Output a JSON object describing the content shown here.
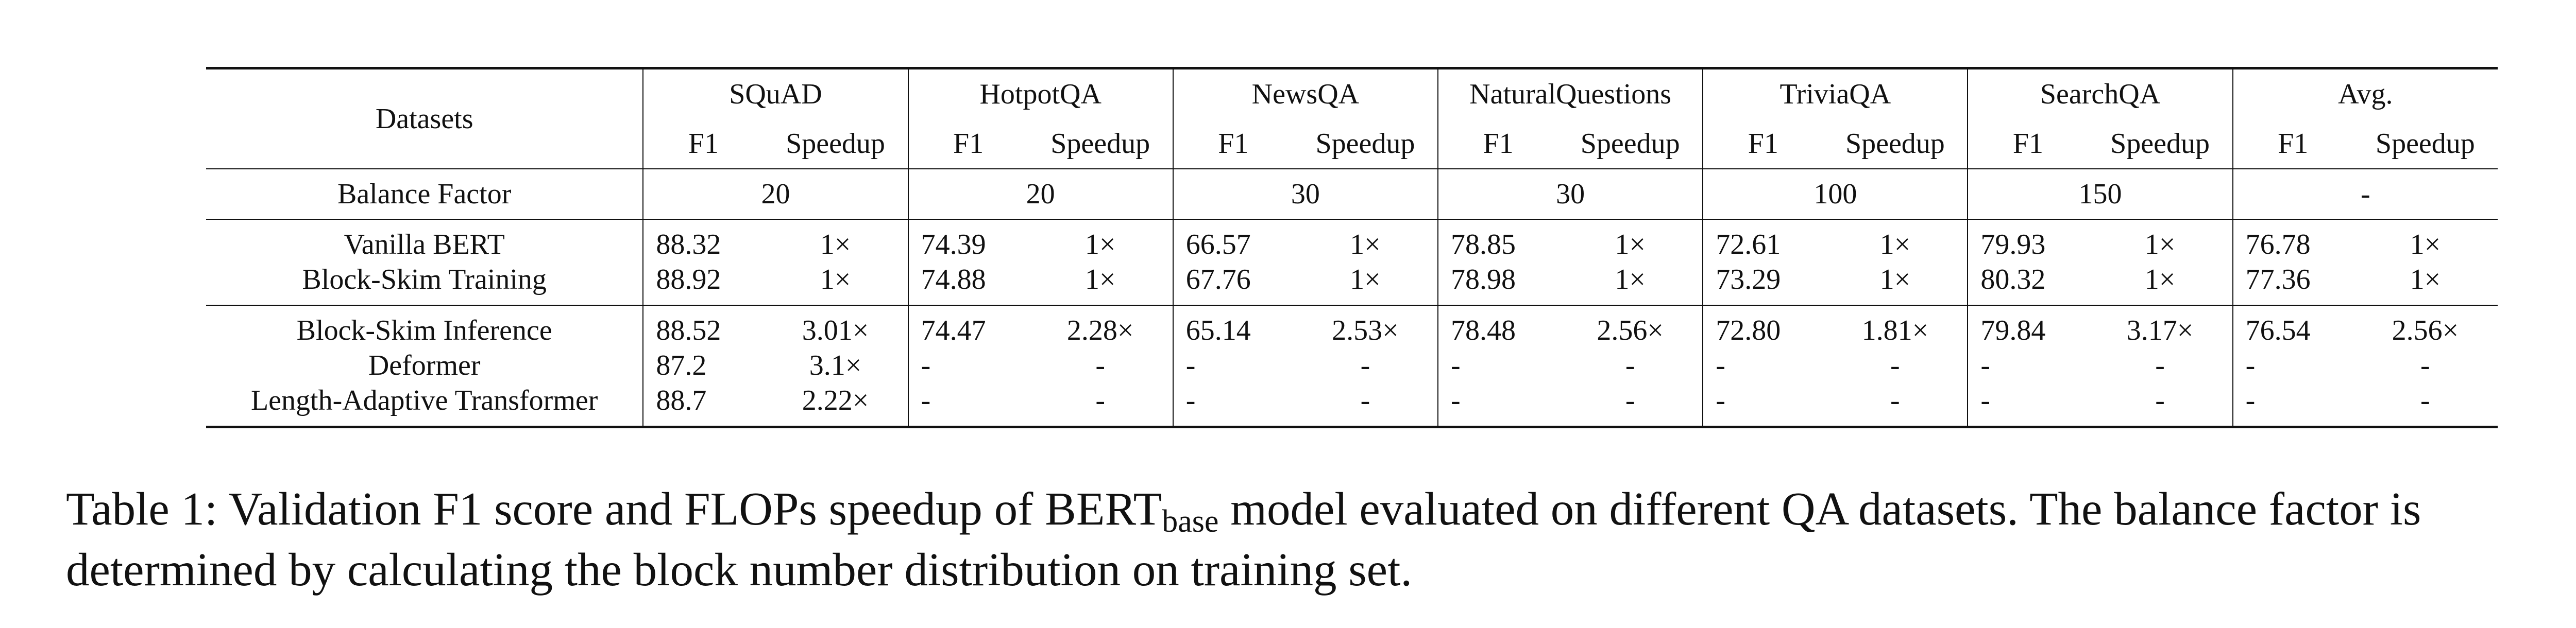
{
  "table": {
    "header": {
      "datasets_label": "Datasets",
      "groups": [
        "SQuAD",
        "HotpotQA",
        "NewsQA",
        "NaturalQuestions",
        "TriviaQA",
        "SearchQA",
        "Avg."
      ],
      "f1_label": "F1",
      "speedup_label": "Speedup"
    },
    "balance": {
      "label": "Balance Factor",
      "values": [
        "20",
        "20",
        "30",
        "30",
        "100",
        "150",
        "-"
      ]
    },
    "rows": [
      {
        "label": "Vanilla BERT",
        "cells": [
          "88.32",
          "1×",
          "74.39",
          "1×",
          "66.57",
          "1×",
          "78.85",
          "1×",
          "72.61",
          "1×",
          "79.93",
          "1×",
          "76.78",
          "1×"
        ]
      },
      {
        "label": "Block-Skim Training",
        "cells": [
          "88.92",
          "1×",
          "74.88",
          "1×",
          "67.76",
          "1×",
          "78.98",
          "1×",
          "73.29",
          "1×",
          "80.32",
          "1×",
          "77.36",
          "1×"
        ]
      },
      {
        "label": "Block-Skim Inference",
        "cells": [
          "88.52",
          "3.01×",
          "74.47",
          "2.28×",
          "65.14",
          "2.53×",
          "78.48",
          "2.56×",
          "72.80",
          "1.81×",
          "79.84",
          "3.17×",
          "76.54",
          "2.56×"
        ]
      },
      {
        "label": "Deformer",
        "cells": [
          "87.2",
          "3.1×",
          "-",
          "-",
          "-",
          "-",
          "-",
          "-",
          "-",
          "-",
          "-",
          "-",
          "-",
          "-"
        ]
      },
      {
        "label": "Length-Adaptive Transformer",
        "cells": [
          "88.7",
          "2.22×",
          "-",
          "-",
          "-",
          "-",
          "-",
          "-",
          "-",
          "-",
          "-",
          "-",
          "-",
          "-"
        ]
      }
    ]
  },
  "caption": {
    "prefix": "Table 1: Validation F1 score and FLOPs speedup of BERT",
    "subscript": "base",
    "suffix": " model evaluated on different QA datasets. The balance factor is determined by calculating the block number distribution on training set."
  }
}
